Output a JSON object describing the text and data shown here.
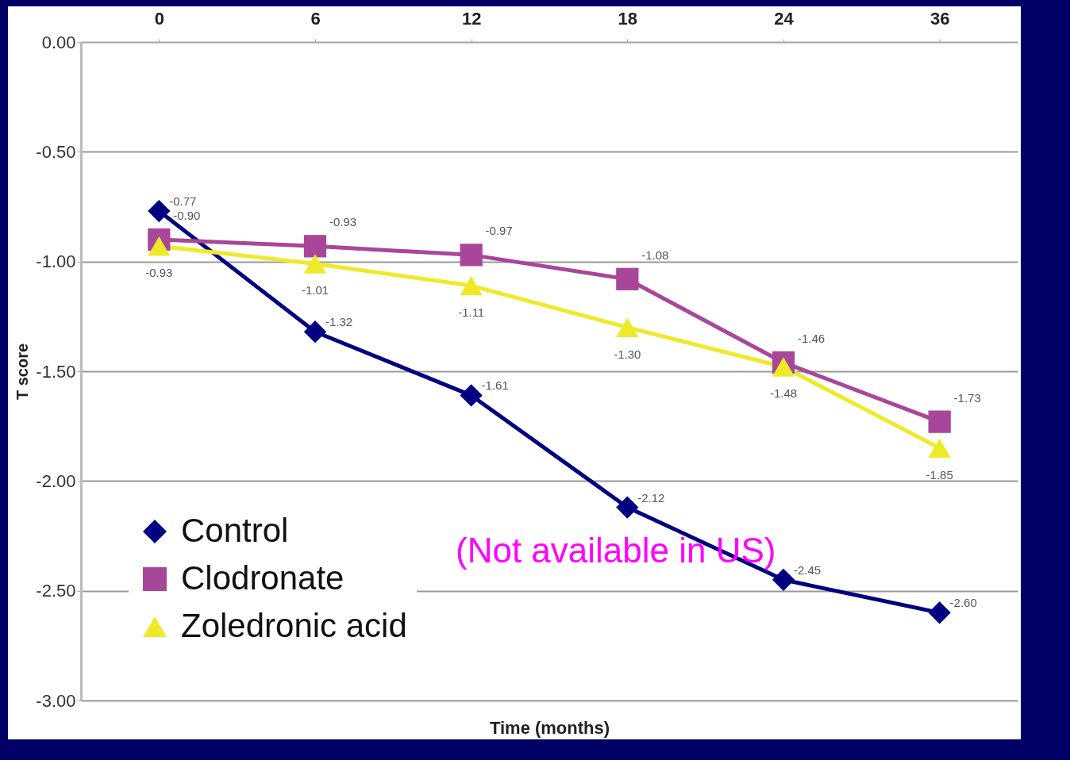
{
  "chart_data": {
    "type": "line",
    "xlabel": "Time (months)",
    "ylabel": "T score",
    "categories": [
      "0",
      "6",
      "12",
      "18",
      "24",
      "36"
    ],
    "series": [
      {
        "name": "Control",
        "color": "#000080",
        "marker": "diamond",
        "values": [
          -0.77,
          -1.32,
          -1.61,
          -2.12,
          -2.45,
          -2.6
        ],
        "value_labels": [
          "-0.77",
          "-1.32",
          "-1.61",
          "-2.12",
          "-2.45",
          "-2.60"
        ]
      },
      {
        "name": "Clodronate",
        "color": "#a8479a",
        "marker": "square",
        "values": [
          -0.9,
          -0.93,
          -0.97,
          -1.08,
          -1.46,
          -1.73
        ],
        "value_labels": [
          "-0.90",
          "-0.93",
          "-0.97",
          "-1.08",
          "-1.46",
          "-1.73"
        ]
      },
      {
        "name": "Zoledronic acid",
        "color": "#eeea2a",
        "marker": "triangle",
        "values": [
          -0.93,
          -1.01,
          -1.11,
          -1.3,
          -1.48,
          -1.85
        ],
        "value_labels": [
          "-0.93",
          "-1.01",
          "-1.11",
          "-1.30",
          "-1.48",
          "-1.85"
        ]
      }
    ],
    "ylim": [
      -3,
      0
    ],
    "yticks": [
      {
        "value": 0,
        "label": "0.00"
      },
      {
        "value": -0.5,
        "label": "-0.50"
      },
      {
        "value": -1,
        "label": "-1.00"
      },
      {
        "value": -1.5,
        "label": "-1.50"
      },
      {
        "value": -2,
        "label": "-2.00"
      },
      {
        "value": -2.5,
        "label": "-2.50"
      },
      {
        "value": -3,
        "label": "-3.00"
      }
    ],
    "grid": "y",
    "legend": "bottom left",
    "line_style": "solid",
    "annotations": [
      "(Not available in US)"
    ]
  }
}
